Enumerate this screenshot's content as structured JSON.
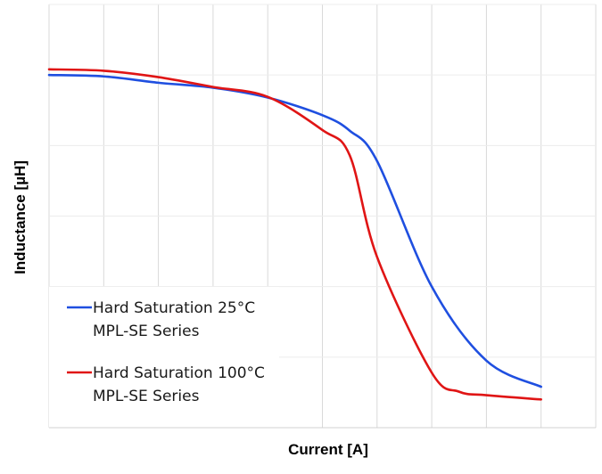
{
  "chart_data": {
    "type": "line",
    "xlabel": "Current [A]",
    "ylabel": "Inductance [µH]",
    "xlim": [
      0,
      10
    ],
    "ylim": [
      0,
      6
    ],
    "grid": true,
    "legend_position": "bottom-left",
    "series": [
      {
        "name_lines": [
          "Hard Saturation 25°C",
          "MPL-SE Series"
        ],
        "color": "#1f4fe0",
        "x": [
          0,
          1,
          2,
          3,
          4,
          5,
          5.5,
          6,
          7,
          8,
          9
        ],
        "y": [
          5.0,
          4.98,
          4.89,
          4.82,
          4.68,
          4.43,
          4.21,
          3.78,
          2.0,
          0.95,
          0.58
        ]
      },
      {
        "name_lines": [
          "Hard Saturation 100°C",
          "MPL-SE Series"
        ],
        "color": "#e01515",
        "x": [
          0,
          1,
          2,
          3,
          4,
          5,
          5.5,
          6,
          7,
          7.5,
          8,
          9
        ],
        "y": [
          5.08,
          5.06,
          4.97,
          4.83,
          4.69,
          4.22,
          3.86,
          2.42,
          0.78,
          0.51,
          0.46,
          0.4
        ]
      }
    ]
  }
}
